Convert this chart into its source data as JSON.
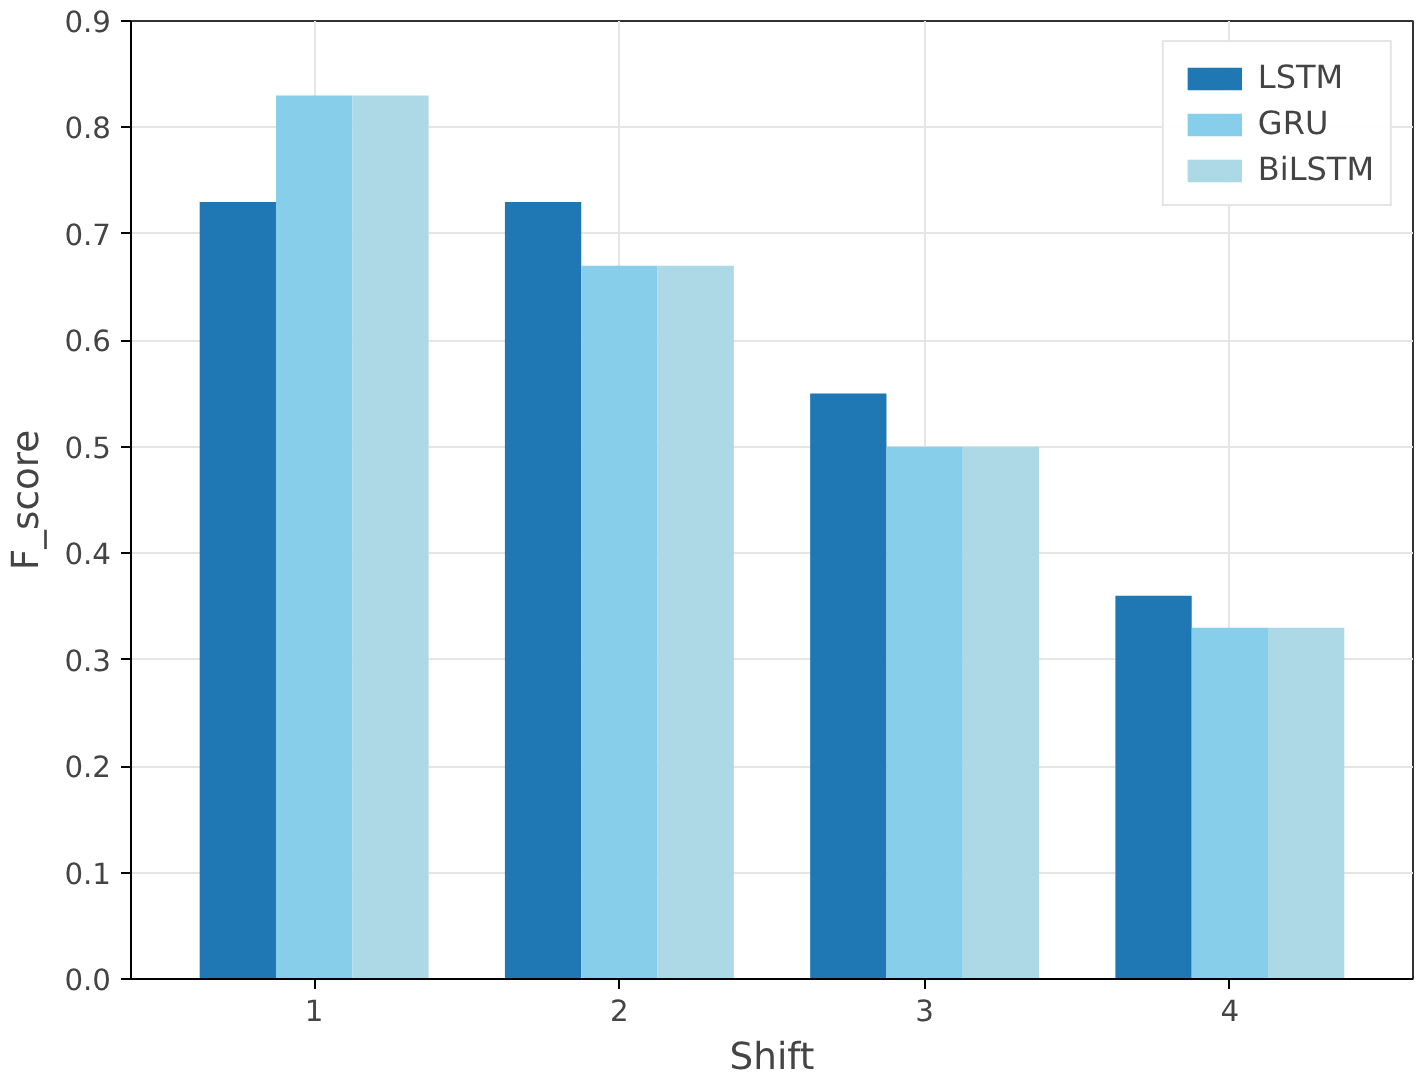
{
  "chart_data": {
    "type": "bar",
    "xlabel": "Shift",
    "ylabel": "F_score",
    "categories": [
      "1",
      "2",
      "3",
      "4"
    ],
    "series": [
      {
        "name": "LSTM",
        "color": "#1f77b4",
        "values": [
          0.73,
          0.73,
          0.55,
          0.36
        ]
      },
      {
        "name": "GRU",
        "color": "#87ceeb",
        "values": [
          0.83,
          0.67,
          0.5,
          0.33
        ]
      },
      {
        "name": "BiLSTM",
        "color": "#add8e6",
        "values": [
          0.83,
          0.67,
          0.5,
          0.33
        ]
      }
    ],
    "ylim": [
      0,
      0.9
    ],
    "yticks": [
      {
        "value": 0,
        "label": "0.0"
      },
      0.1,
      0.2,
      0.3,
      0.4,
      0.5,
      0.6,
      0.7,
      0.8,
      0.9
    ],
    "grid": true,
    "legend": "top right"
  }
}
